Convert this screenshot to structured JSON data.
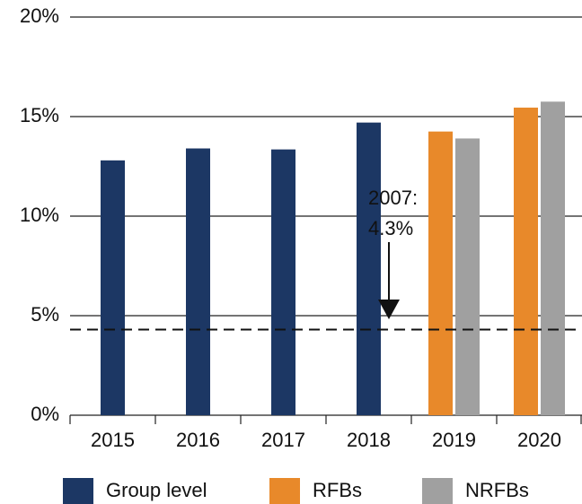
{
  "chart_data": {
    "type": "bar",
    "categories": [
      "2015",
      "2016",
      "2017",
      "2018",
      "2019",
      "2020"
    ],
    "series": [
      {
        "name": "Group level",
        "color": "#1c3764",
        "values": [
          12.8,
          13.4,
          13.35,
          14.7,
          null,
          null
        ]
      },
      {
        "name": "RFBs",
        "color": "#e8892a",
        "values": [
          null,
          null,
          null,
          null,
          14.25,
          15.45
        ]
      },
      {
        "name": "NRFBs",
        "color": "#a0a0a0",
        "values": [
          null,
          null,
          null,
          null,
          13.9,
          15.75
        ]
      }
    ],
    "ylim": [
      0,
      20
    ],
    "yticks": [
      {
        "value": 0,
        "label": "0%"
      },
      {
        "value": 5,
        "label": "5%"
      },
      {
        "value": 10,
        "label": "10%"
      },
      {
        "value": 15,
        "label": "15%"
      },
      {
        "value": 20,
        "label": "20%"
      }
    ],
    "grid": true,
    "reference_line": {
      "value": 4.3,
      "label_lines": [
        "2007:",
        "4.3%"
      ]
    },
    "legend": "bottom"
  }
}
